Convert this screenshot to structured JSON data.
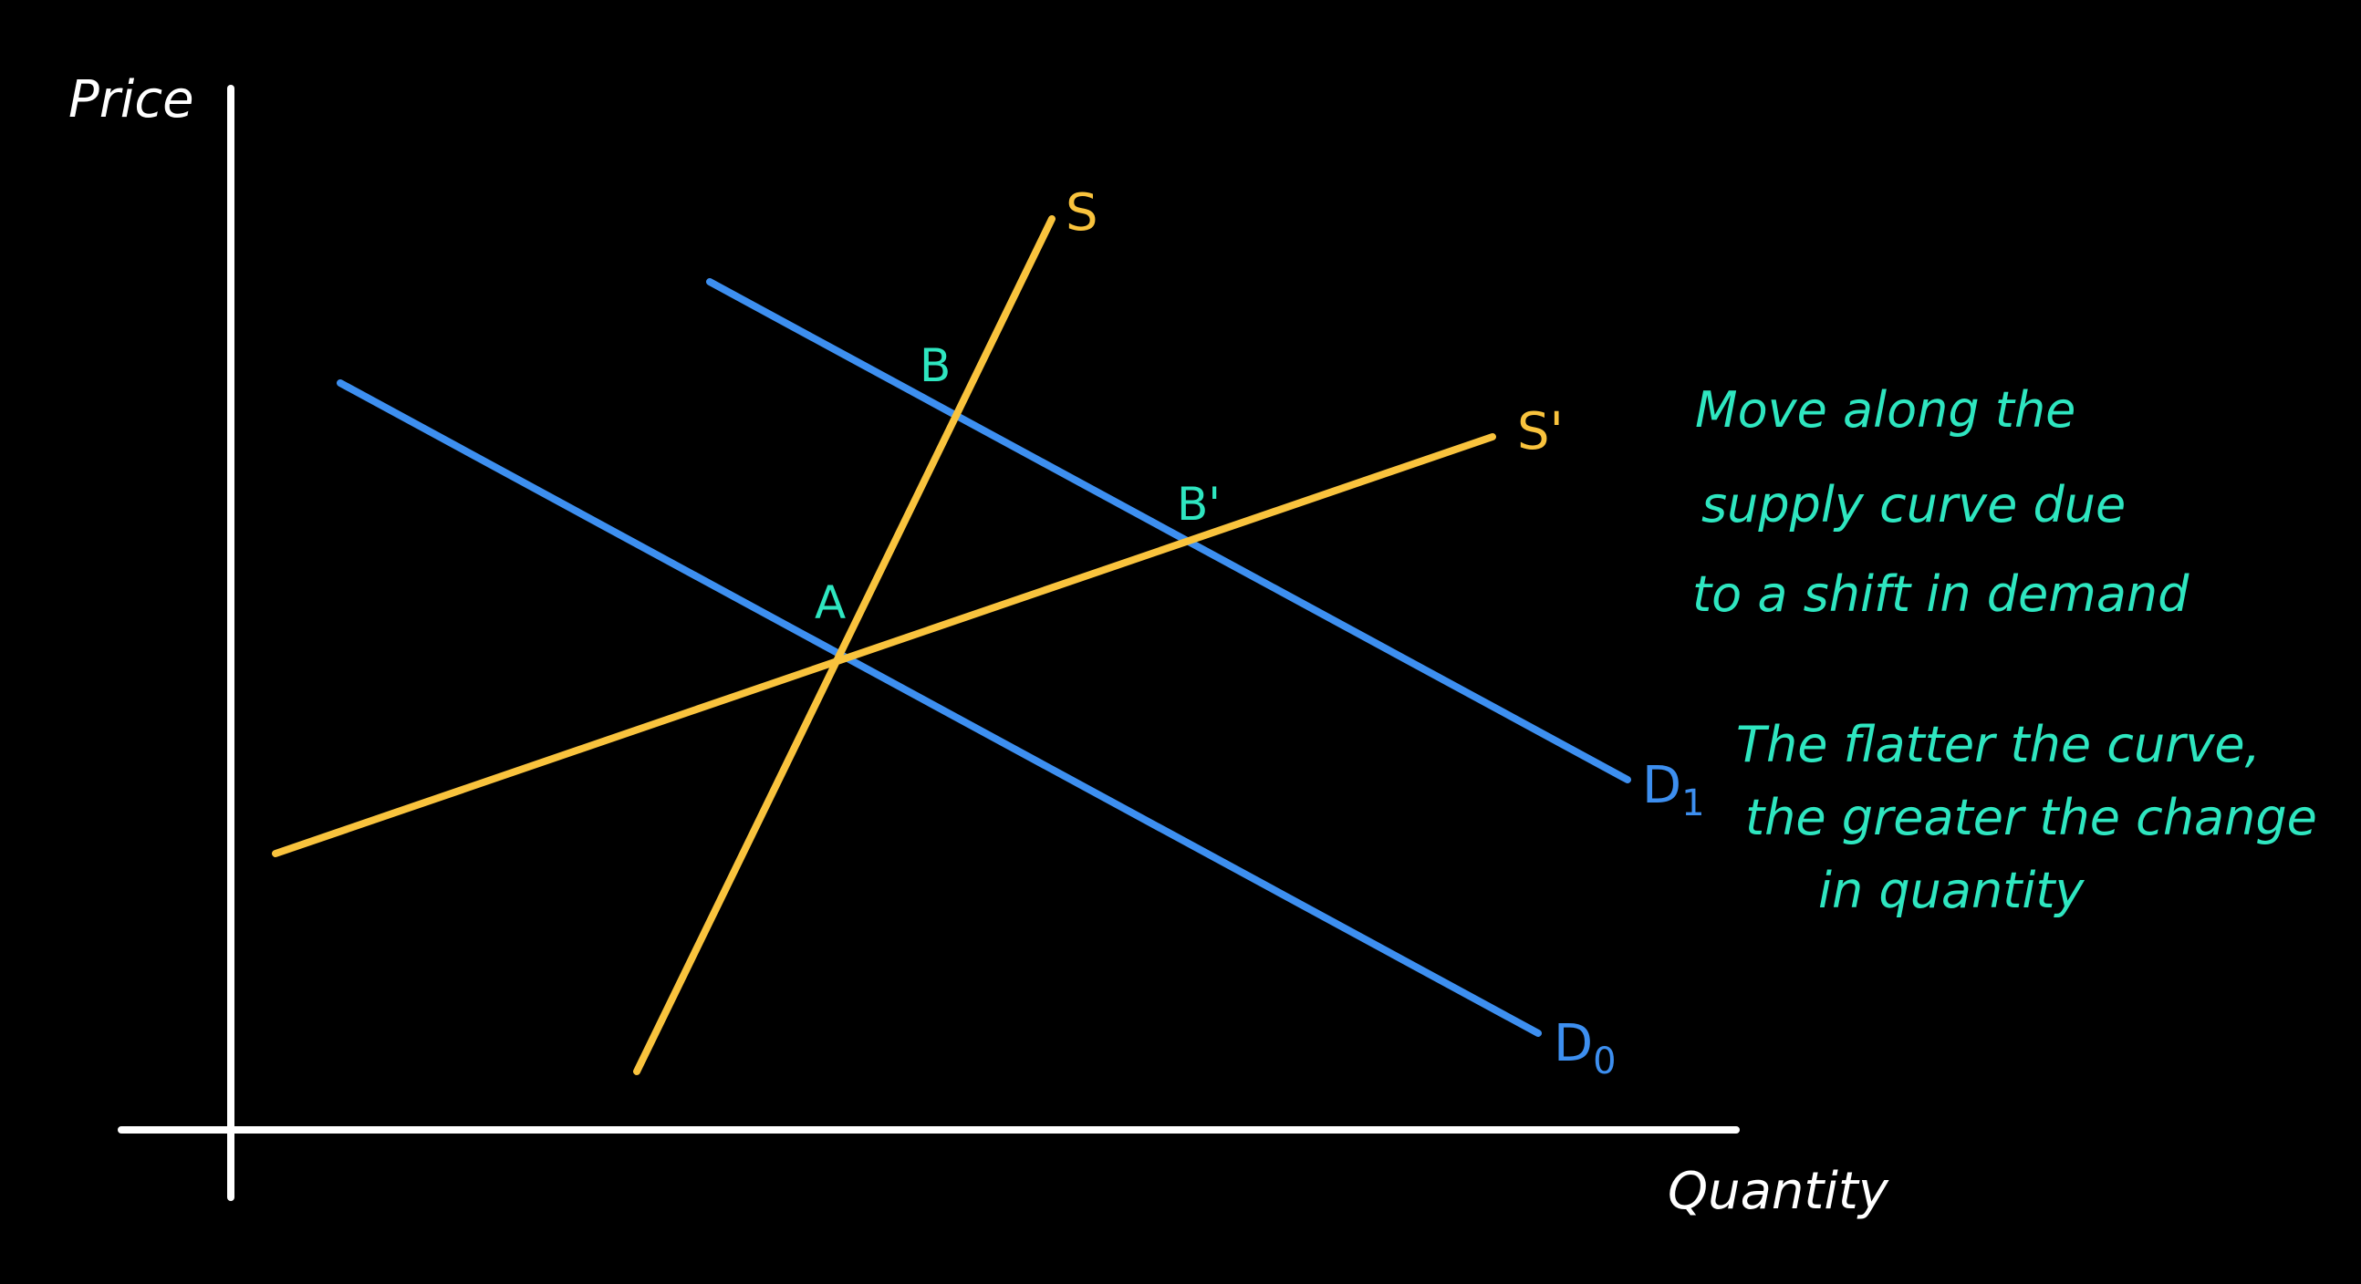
{
  "colors": {
    "background": "#000000",
    "axes": "#ffffff",
    "supply": "#f9c33d",
    "demand": "#3d8ff0",
    "annotation": "#2ee6c0"
  },
  "axes": {
    "y_label": "Price",
    "x_label": "Quantity"
  },
  "curves": {
    "S": {
      "label": "S"
    },
    "S_prime": {
      "label": "S'"
    },
    "D0": {
      "label": "D",
      "subscript": "0"
    },
    "D1": {
      "label": "D",
      "subscript": "1"
    }
  },
  "points": {
    "A": "A",
    "B": "B",
    "B_prime": "B'"
  },
  "notes": {
    "note1": [
      "Move along the",
      "supply curve due",
      "to a shift in demand"
    ],
    "note2": [
      "The flatter the curve,",
      "the greater the change",
      "in quantity"
    ]
  }
}
